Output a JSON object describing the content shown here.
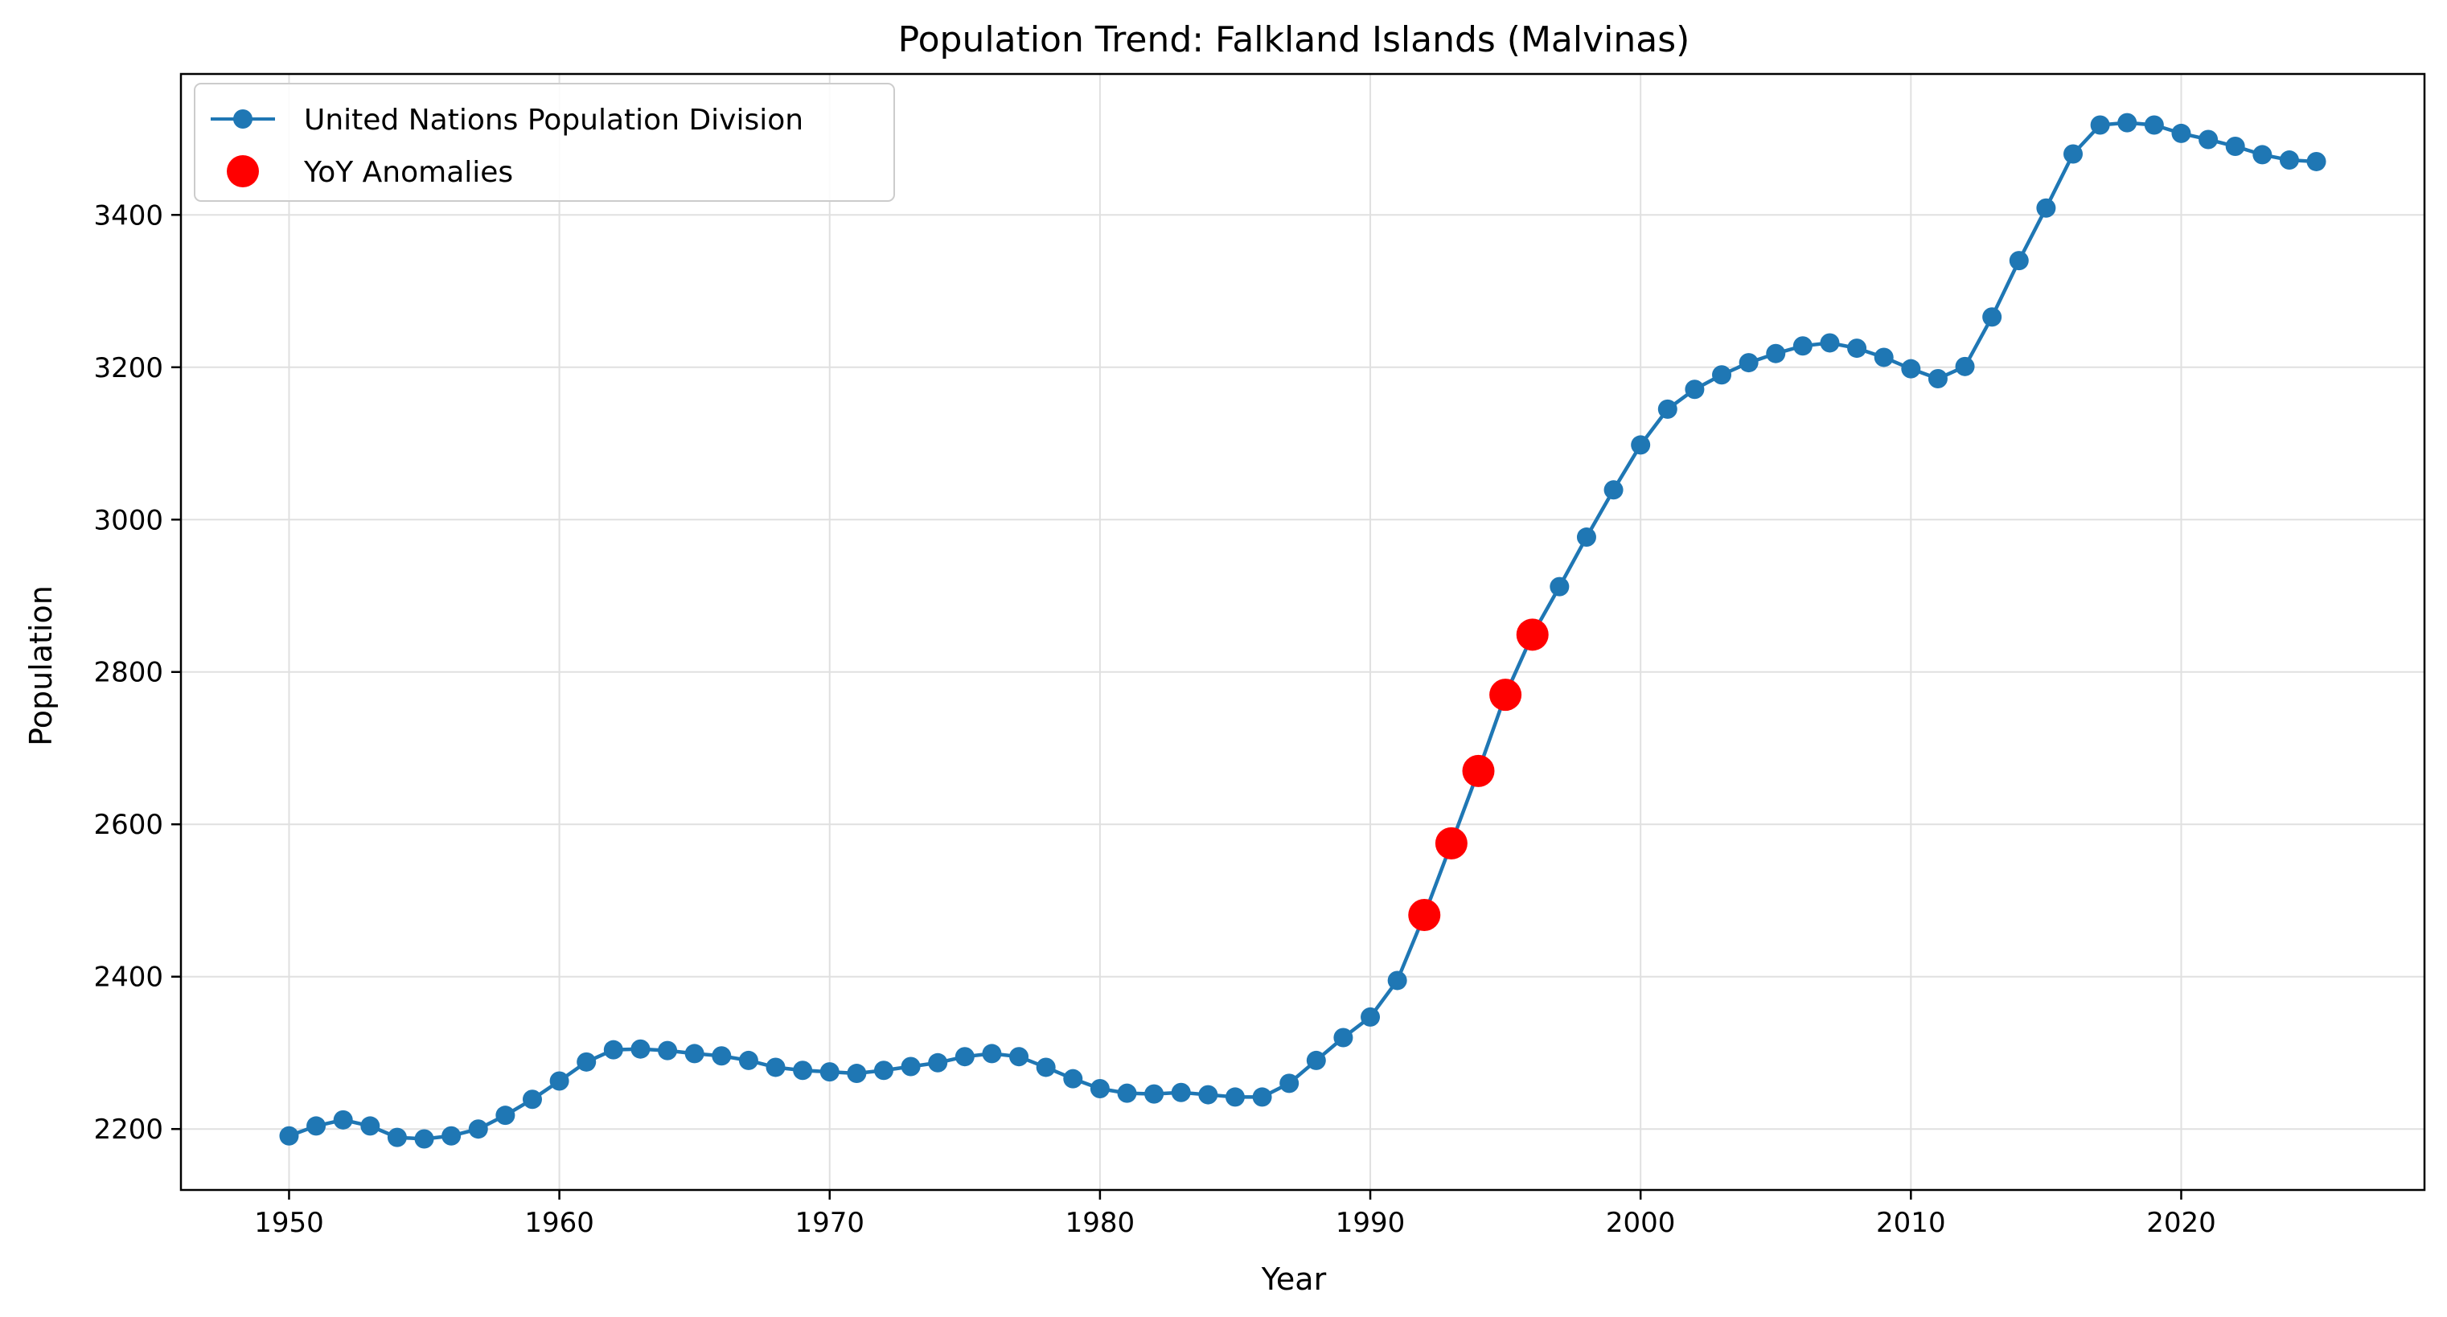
{
  "colors": {
    "series": "#1f77b4",
    "anomaly": "#ff0000",
    "grid": "#e0e0e0",
    "axis": "#000000",
    "background": "#ffffff"
  },
  "chart_data": {
    "type": "line",
    "title": "Population Trend: Falkland Islands (Malvinas)",
    "xlabel": "Year",
    "ylabel": "Population",
    "xlim": [
      1946,
      2029
    ],
    "ylim": [
      2120,
      3585
    ],
    "x_ticks": [
      1950,
      1960,
      1970,
      1980,
      1990,
      2000,
      2010,
      2020
    ],
    "y_ticks": [
      2200,
      2400,
      2600,
      2800,
      3000,
      3200,
      3400
    ],
    "grid": true,
    "legend_position": "top-left",
    "series": [
      {
        "name": "United Nations Population Division",
        "marker": "circle",
        "x": [
          1950,
          1951,
          1952,
          1953,
          1954,
          1955,
          1956,
          1957,
          1958,
          1959,
          1960,
          1961,
          1962,
          1963,
          1964,
          1965,
          1966,
          1967,
          1968,
          1969,
          1970,
          1971,
          1972,
          1973,
          1974,
          1975,
          1976,
          1977,
          1978,
          1979,
          1980,
          1981,
          1982,
          1983,
          1984,
          1985,
          1986,
          1987,
          1988,
          1989,
          1990,
          1991,
          1992,
          1993,
          1994,
          1995,
          1996,
          1997,
          1998,
          1999,
          2000,
          2001,
          2002,
          2003,
          2004,
          2005,
          2006,
          2007,
          2008,
          2009,
          2010,
          2011,
          2012,
          2013,
          2014,
          2015,
          2016,
          2017,
          2018,
          2019,
          2020,
          2021,
          2022,
          2023,
          2024,
          2025
        ],
        "y": [
          2191,
          2204,
          2212,
          2204,
          2189,
          2187,
          2191,
          2200,
          2218,
          2239,
          2263,
          2288,
          2304,
          2305,
          2303,
          2299,
          2296,
          2290,
          2281,
          2277,
          2275,
          2273,
          2277,
          2282,
          2287,
          2295,
          2299,
          2295,
          2281,
          2266,
          2253,
          2247,
          2246,
          2248,
          2245,
          2242,
          2242,
          2260,
          2290,
          2320,
          2347,
          2395,
          2481,
          2575,
          2670,
          2770,
          2849,
          2912,
          2977,
          3039,
          3098,
          3145,
          3171,
          3190,
          3206,
          3218,
          3228,
          3232,
          3225,
          3213,
          3198,
          3185,
          3201,
          3266,
          3340,
          3409,
          3480,
          3518,
          3521,
          3518,
          3507,
          3499,
          3490,
          3479,
          3472,
          3470
        ]
      },
      {
        "name": "YoY Anomalies",
        "marker": "circle",
        "x": [
          1992,
          1993,
          1994,
          1995,
          1996
        ],
        "y": [
          2481,
          2575,
          2670,
          2770,
          2849
        ]
      }
    ]
  }
}
